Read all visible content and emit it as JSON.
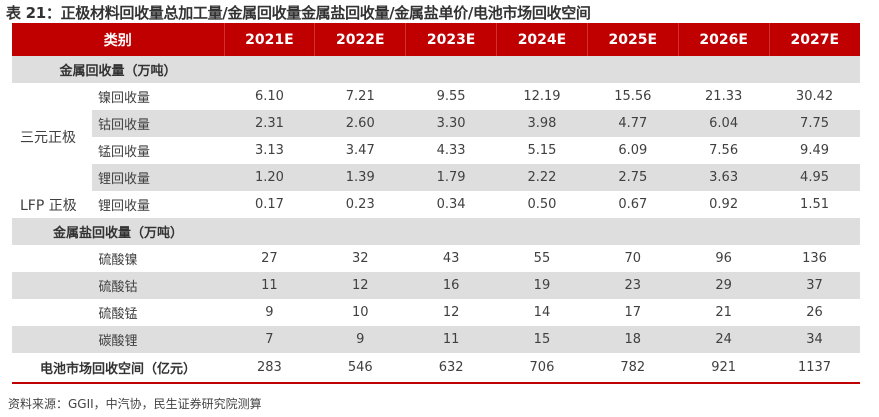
{
  "title": "表 21：正极材料回收量总加工量/金属回收量金属盐回收量/金属盐单价/电池市场回收空间",
  "header": {
    "category": "类别",
    "years": [
      "2021E",
      "2022E",
      "2023E",
      "2024E",
      "2025E",
      "2026E",
      "2027E"
    ]
  },
  "section1": {
    "label": "金属回收量（万吨）",
    "groups": [
      {
        "label": "三元正极",
        "rows": [
          {
            "label": "镍回收量",
            "values": [
              "6.10",
              "7.21",
              "9.55",
              "12.19",
              "15.56",
              "21.33",
              "30.42"
            ]
          },
          {
            "label": "钴回收量",
            "values": [
              "2.31",
              "2.60",
              "3.30",
              "3.98",
              "4.77",
              "6.04",
              "7.75"
            ]
          },
          {
            "label": "锰回收量",
            "values": [
              "3.13",
              "3.47",
              "4.33",
              "5.15",
              "6.09",
              "7.56",
              "9.49"
            ]
          },
          {
            "label": "锂回收量",
            "values": [
              "1.20",
              "1.39",
              "1.79",
              "2.22",
              "2.75",
              "3.63",
              "4.95"
            ]
          }
        ]
      },
      {
        "label": "LFP 正极",
        "rows": [
          {
            "label": "锂回收量",
            "values": [
              "0.17",
              "0.23",
              "0.34",
              "0.50",
              "0.67",
              "0.92",
              "1.51"
            ]
          }
        ]
      }
    ]
  },
  "section2": {
    "label": "金属盐回收量（万吨）",
    "rows": [
      {
        "label": "硫酸镍",
        "values": [
          "27",
          "32",
          "43",
          "55",
          "70",
          "96",
          "136"
        ]
      },
      {
        "label": "硫酸钴",
        "values": [
          "11",
          "12",
          "16",
          "19",
          "23",
          "29",
          "37"
        ]
      },
      {
        "label": "硫酸锰",
        "values": [
          "9",
          "10",
          "12",
          "14",
          "17",
          "21",
          "26"
        ]
      },
      {
        "label": "碳酸锂",
        "values": [
          "7",
          "9",
          "11",
          "15",
          "18",
          "24",
          "34"
        ]
      }
    ]
  },
  "total": {
    "label": "电池市场回收空间（亿元）",
    "values": [
      "283",
      "546",
      "632",
      "706",
      "782",
      "921",
      "1137"
    ]
  },
  "source": "资料来源：GGII，中汽协，民生证券研究院测算"
}
